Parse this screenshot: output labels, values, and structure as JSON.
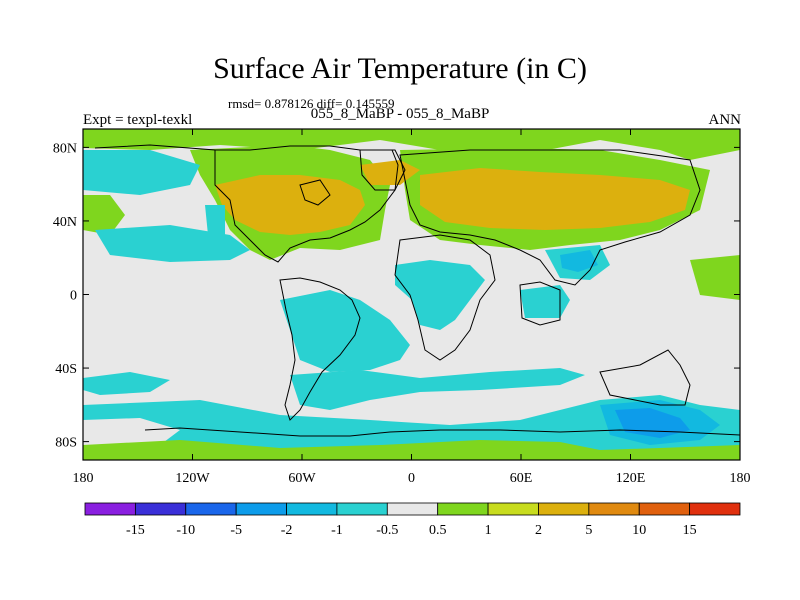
{
  "title": "Surface Air Temperature (in C)",
  "stats": "rmsd= 0.878126 diff= 0.145559",
  "subtitle": "055_8_MaBP - 055_8_MaBP",
  "left_label": "Expt = texpl-texkl",
  "right_label": "ANN",
  "map_extent": {
    "lon": [
      -180,
      180
    ],
    "lat": [
      -90,
      90
    ]
  },
  "lat_ticks": [
    {
      "value": 80,
      "label": "80N"
    },
    {
      "value": 40,
      "label": "40N"
    },
    {
      "value": 0,
      "label": "0"
    },
    {
      "value": -40,
      "label": "40S"
    },
    {
      "value": -80,
      "label": "80S"
    }
  ],
  "lon_ticks": [
    {
      "value": -180,
      "label": "180"
    },
    {
      "value": -120,
      "label": "120W"
    },
    {
      "value": -60,
      "label": "60W"
    },
    {
      "value": 0,
      "label": "0"
    },
    {
      "value": 60,
      "label": "60E"
    },
    {
      "value": 120,
      "label": "120E"
    },
    {
      "value": 180,
      "label": "180"
    }
  ],
  "colorbar": {
    "colors": [
      "#8a1fe0",
      "#3a2fd8",
      "#1a66ea",
      "#0d9cea",
      "#12b9e0",
      "#2ad1d1",
      "#e8e8e8",
      "#7fd61e",
      "#c8dc1e",
      "#dcb00e",
      "#e08a10",
      "#e0600e",
      "#e0300e"
    ],
    "labels": [
      "-15",
      "-10",
      "-5",
      "-2",
      "-1",
      "-0.5",
      "0.5",
      "1",
      "2",
      "5",
      "10",
      "15"
    ]
  },
  "palette": {
    "neutral": "#e8e8e8",
    "cool": "#2ad1d1",
    "cooler": "#12b9e0",
    "coolest": "#0d9cea",
    "warm": "#7fd61e",
    "warmer": "#c8dc1e",
    "warmest": "#dcb00e"
  }
}
